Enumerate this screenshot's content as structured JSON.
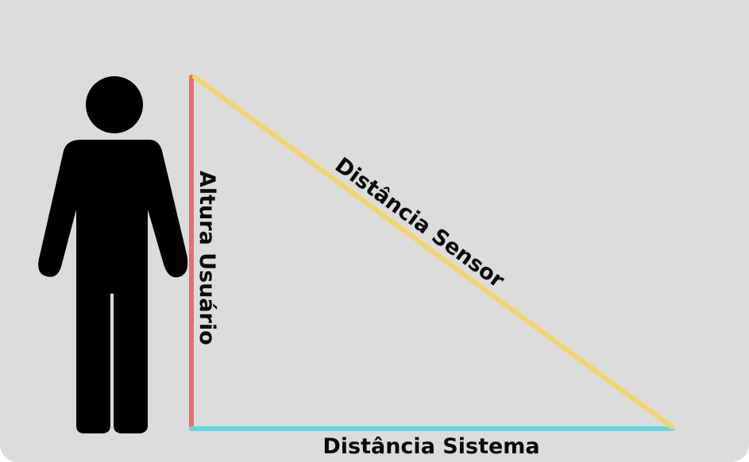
{
  "diagram": {
    "title": "",
    "labels": {
      "user_height": "Altura Usuário",
      "sensor_distance": "Distância Sensor",
      "system_distance": "Distância Sistema"
    },
    "colors": {
      "background": "#dcdcdc",
      "user_height_side": "#f06a6a",
      "sensor_distance_side": "#f3d46a",
      "system_distance_side": "#63d8dc",
      "figure": "#000000",
      "text": "#0a0a0a"
    },
    "figure_icon": "person-silhouette-icon"
  }
}
